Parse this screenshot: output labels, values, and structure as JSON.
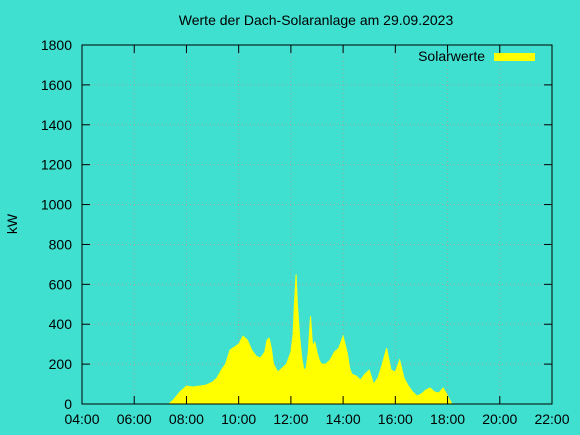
{
  "chart_data": {
    "type": "area",
    "title": "Werte der Dach-Solaranlage am 29.09.2023",
    "xlabel": "",
    "ylabel": "kW",
    "xlim": [
      "04:00",
      "22:00"
    ],
    "ylim": [
      0,
      1800
    ],
    "x_ticks": [
      "04:00",
      "06:00",
      "08:00",
      "10:00",
      "12:00",
      "14:00",
      "16:00",
      "18:00",
      "20:00",
      "22:00"
    ],
    "y_ticks": [
      "0",
      "200",
      "400",
      "600",
      "800",
      "1000",
      "1200",
      "1400",
      "1600",
      "1800"
    ],
    "grid": true,
    "legend_position": "top-right",
    "colors": {
      "background": "#40e0d0",
      "series": "#ffff00"
    },
    "series": [
      {
        "name": "Solarwerte",
        "x": [
          "07:20",
          "07:30",
          "07:45",
          "08:00",
          "08:15",
          "08:30",
          "08:45",
          "09:00",
          "09:10",
          "09:20",
          "09:30",
          "09:40",
          "09:50",
          "10:00",
          "10:10",
          "10:20",
          "10:30",
          "10:40",
          "10:50",
          "11:00",
          "11:05",
          "11:10",
          "11:15",
          "11:20",
          "11:30",
          "11:40",
          "11:50",
          "12:00",
          "12:05",
          "12:08",
          "12:12",
          "12:15",
          "12:20",
          "12:25",
          "12:30",
          "12:35",
          "12:40",
          "12:45",
          "12:50",
          "12:55",
          "13:00",
          "13:05",
          "13:10",
          "13:20",
          "13:30",
          "13:40",
          "13:50",
          "14:00",
          "14:10",
          "14:15",
          "14:20",
          "14:30",
          "14:40",
          "14:50",
          "15:00",
          "15:10",
          "15:20",
          "15:30",
          "15:40",
          "15:50",
          "16:00",
          "16:10",
          "16:20",
          "16:30",
          "16:40",
          "16:50",
          "17:00",
          "17:10",
          "17:20",
          "17:30",
          "17:40",
          "17:50",
          "18:00",
          "18:10"
        ],
        "y": [
          0,
          20,
          60,
          90,
          85,
          90,
          95,
          110,
          130,
          170,
          200,
          270,
          285,
          300,
          340,
          320,
          270,
          240,
          230,
          260,
          320,
          330,
          280,
          200,
          160,
          180,
          200,
          260,
          350,
          500,
          650,
          500,
          340,
          230,
          170,
          180,
          260,
          440,
          290,
          310,
          260,
          220,
          200,
          200,
          220,
          260,
          280,
          340,
          250,
          180,
          150,
          140,
          120,
          150,
          170,
          100,
          130,
          200,
          280,
          170,
          160,
          220,
          130,
          90,
          60,
          40,
          50,
          70,
          80,
          60,
          55,
          80,
          40,
          0
        ]
      }
    ]
  }
}
